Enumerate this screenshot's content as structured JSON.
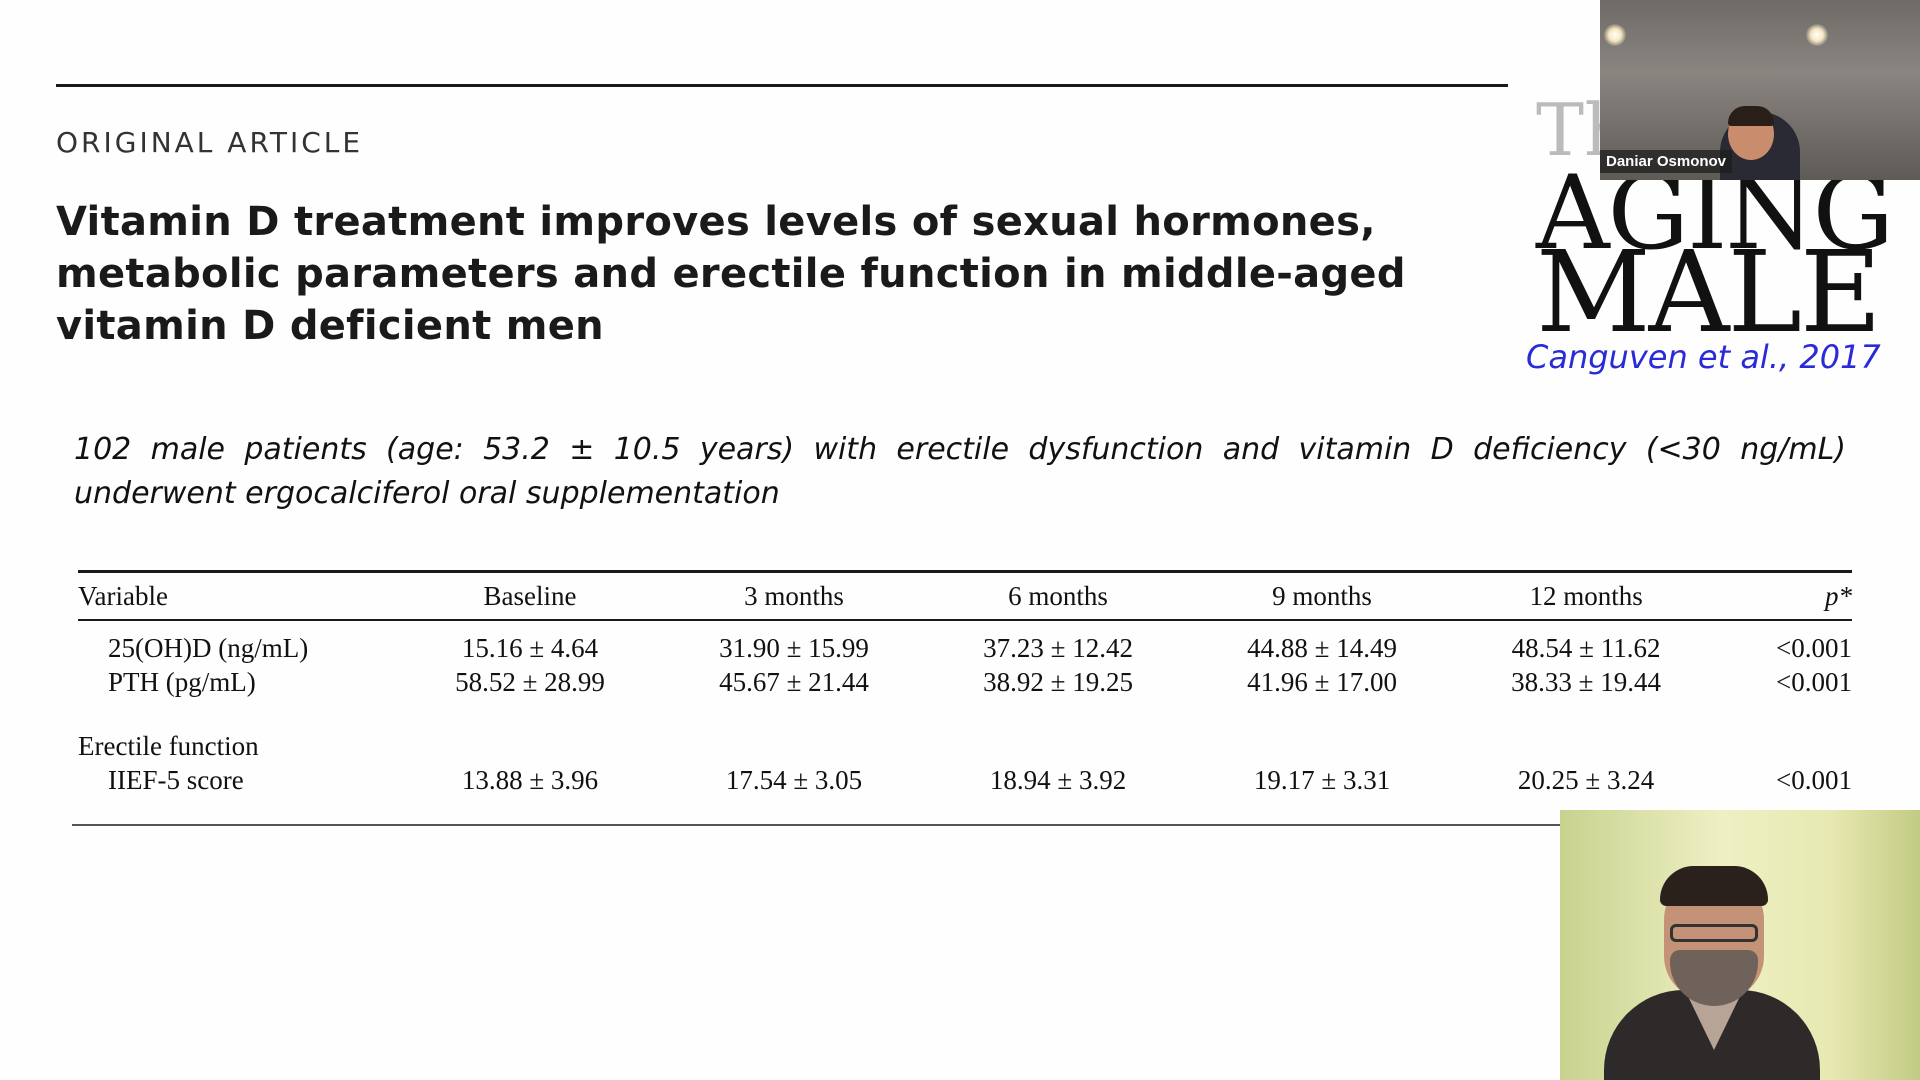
{
  "slide": {
    "kicker": "ORIGINAL ARTICLE",
    "title": "Vitamin D treatment improves levels of sexual hormones, metabolic parameters and erectile function in middle-aged vitamin D deficient men",
    "journal_logo": {
      "line1": "Th",
      "line2": "AGING",
      "line3": "MALE"
    },
    "citation": "Canguven et al., 2017",
    "summary": "102 male patients (age: 53.2 ± 10.5 years) with erectile dysfunction and vitamin D deficiency (<30 ng/mL) underwent ergocalciferol oral supplementation",
    "citation_color": "#2a2ad8"
  },
  "table": {
    "headers": [
      "Variable",
      "Baseline",
      "3 months",
      "6 months",
      "9 months",
      "12 months",
      "p*"
    ],
    "rows": [
      {
        "variable": "25(OH)D (ng/mL)",
        "values": [
          "15.16 ± 4.64",
          "31.90 ± 15.99",
          "37.23 ± 12.42",
          "44.88 ± 14.49",
          "48.54 ± 11.62",
          "<0.001"
        ]
      },
      {
        "variable": "PTH (pg/mL)",
        "values": [
          "58.52 ± 28.99",
          "45.67 ± 21.44",
          "38.92 ± 19.25",
          "41.96 ± 17.00",
          "38.33 ± 19.44",
          "<0.001"
        ]
      }
    ],
    "group_label": "Erectile function",
    "group_rows": [
      {
        "variable": "IIEF-5 score",
        "values": [
          "13.88 ± 3.96",
          "17.54 ± 3.05",
          "18.94 ± 3.92",
          "19.17 ± 3.31",
          "20.25 ± 3.24",
          "<0.001"
        ]
      }
    ]
  },
  "video_tiles": {
    "participant_top": {
      "name": "Daniar Osmonov",
      "icon": "webcam-video"
    },
    "participant_bottom": {
      "icon": "webcam-video"
    }
  }
}
